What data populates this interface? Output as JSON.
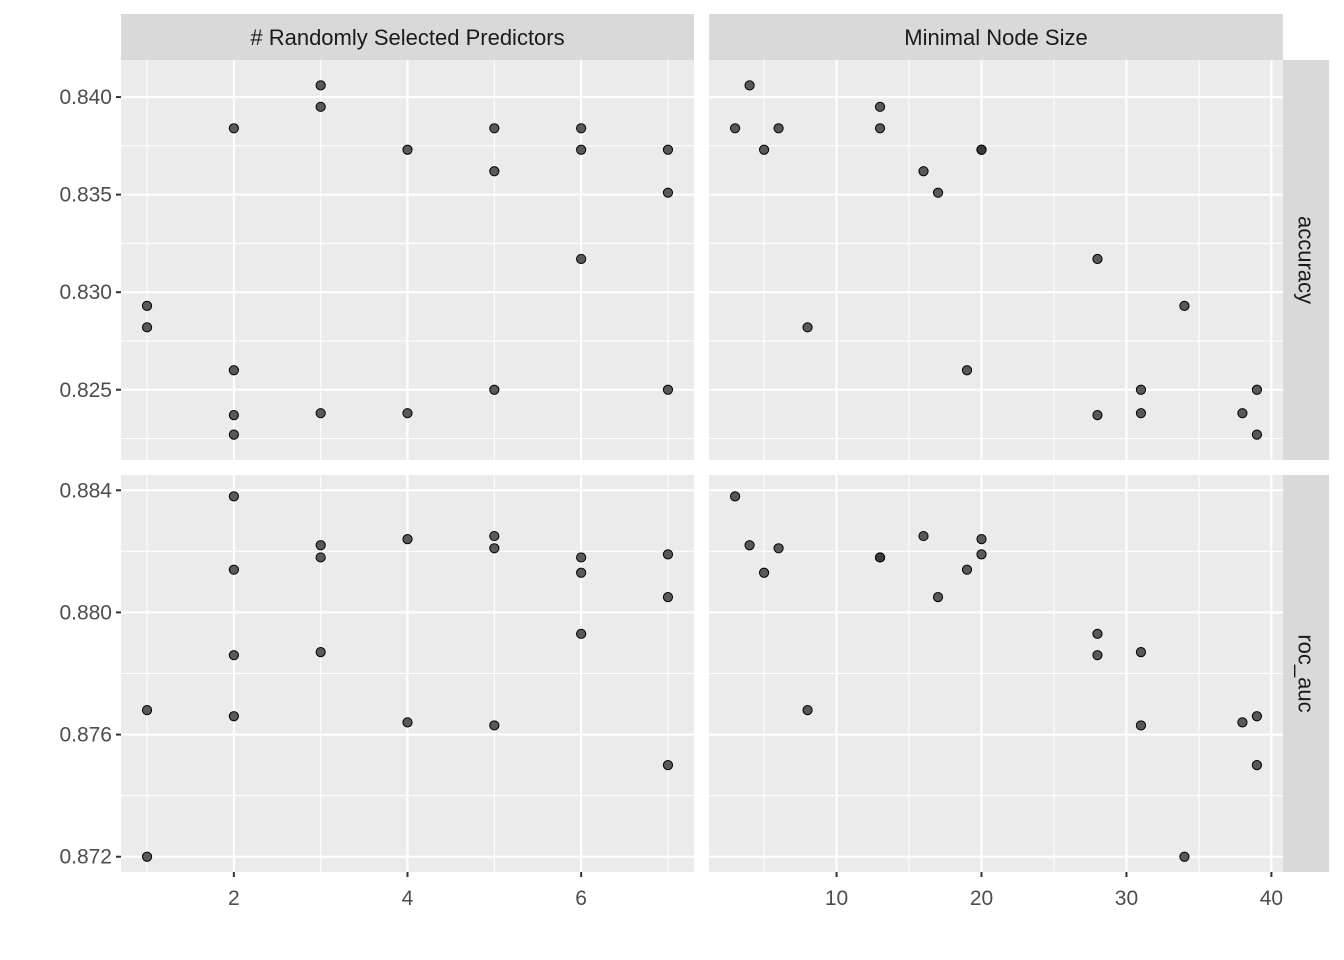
{
  "chart_data": {
    "type": "scatter",
    "facets": {
      "columns": [
        "# Randomly Selected Predictors",
        "Minimal Node Size"
      ],
      "rows": [
        "accuracy",
        "roc_auc"
      ]
    },
    "x_axes": [
      {
        "column": "# Randomly Selected Predictors",
        "range": [
          0.7,
          7.3
        ],
        "ticks": [
          2,
          4,
          6
        ],
        "tick_labels": [
          "2",
          "4",
          "6"
        ]
      },
      {
        "column": "Minimal Node Size",
        "range": [
          1.2,
          40.8
        ],
        "ticks": [
          10,
          20,
          30,
          40
        ],
        "tick_labels": [
          "10",
          "20",
          "30",
          "40"
        ]
      }
    ],
    "y_axes": [
      {
        "row": "accuracy",
        "range": [
          0.8214,
          0.8419
        ],
        "ticks": [
          0.825,
          0.83,
          0.835,
          0.84
        ],
        "tick_labels": [
          "0.825",
          "0.830",
          "0.835",
          "0.840"
        ]
      },
      {
        "row": "roc_auc",
        "range": [
          0.8715,
          0.8845
        ],
        "ticks": [
          0.872,
          0.876,
          0.88,
          0.884
        ],
        "tick_labels": [
          "0.872",
          "0.876",
          "0.880",
          "0.884"
        ]
      }
    ],
    "points": [
      {
        "mtry": 3,
        "min_n": 4,
        "accuracy": 0.8406,
        "roc_auc": 0.8822
      },
      {
        "mtry": 3,
        "min_n": 13,
        "accuracy": 0.8395,
        "roc_auc": 0.8818
      },
      {
        "mtry": 2,
        "min_n": 3,
        "accuracy": 0.8384,
        "roc_auc": 0.8838
      },
      {
        "mtry": 5,
        "min_n": 6,
        "accuracy": 0.8384,
        "roc_auc": 0.8821
      },
      {
        "mtry": 6,
        "min_n": 13,
        "accuracy": 0.8384,
        "roc_auc": 0.8818
      },
      {
        "mtry": 4,
        "min_n": 20,
        "accuracy": 0.8373,
        "roc_auc": 0.8824
      },
      {
        "mtry": 6,
        "min_n": 5,
        "accuracy": 0.8373,
        "roc_auc": 0.8813
      },
      {
        "mtry": 7,
        "min_n": 20,
        "accuracy": 0.8373,
        "roc_auc": 0.8819
      },
      {
        "mtry": 5,
        "min_n": 16,
        "accuracy": 0.8362,
        "roc_auc": 0.8825
      },
      {
        "mtry": 7,
        "min_n": 17,
        "accuracy": 0.8351,
        "roc_auc": 0.8805
      },
      {
        "mtry": 6,
        "min_n": 28,
        "accuracy": 0.8317,
        "roc_auc": 0.8793
      },
      {
        "mtry": 1,
        "min_n": 34,
        "accuracy": 0.8293,
        "roc_auc": 0.872
      },
      {
        "mtry": 1,
        "min_n": 8,
        "accuracy": 0.8282,
        "roc_auc": 0.8768
      },
      {
        "mtry": 2,
        "min_n": 19,
        "accuracy": 0.826,
        "roc_auc": 0.8814
      },
      {
        "mtry": 5,
        "min_n": 31,
        "accuracy": 0.825,
        "roc_auc": 0.8763
      },
      {
        "mtry": 7,
        "min_n": 39,
        "accuracy": 0.825,
        "roc_auc": 0.875
      },
      {
        "mtry": 3,
        "min_n": 31,
        "accuracy": 0.8238,
        "roc_auc": 0.8787
      },
      {
        "mtry": 4,
        "min_n": 38,
        "accuracy": 0.8238,
        "roc_auc": 0.8764
      },
      {
        "mtry": 2,
        "min_n": 28,
        "accuracy": 0.8237,
        "roc_auc": 0.8786
      },
      {
        "mtry": 2,
        "min_n": 39,
        "accuracy": 0.8227,
        "roc_auc": 0.8766
      }
    ],
    "grid": true,
    "legend": "none"
  }
}
